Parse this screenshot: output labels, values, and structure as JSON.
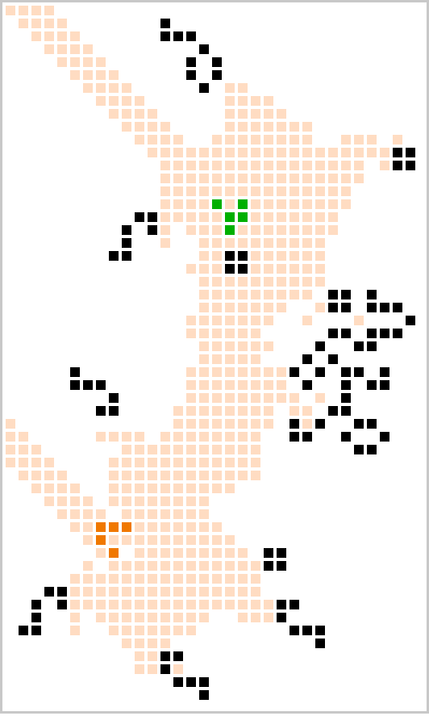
{
  "game": {
    "type": "cellular-automaton-grid",
    "grid": {
      "columns": 33,
      "rows": 55
    },
    "colors": {
      "background": "#ffffff",
      "frame": "#c8c8c8",
      "trail": "#ffdcc2",
      "live": "#000000",
      "glider_green": "#00b000",
      "glider_orange": "#f07800"
    },
    "trail_rows": [
      [
        [
          0,
          3
        ]
      ],
      [
        [
          1,
          4
        ]
      ],
      [
        [
          2,
          5
        ]
      ],
      [
        [
          3,
          6
        ]
      ],
      [
        [
          4,
          7
        ]
      ],
      [
        [
          5,
          8
        ]
      ],
      [
        [
          6,
          9
        ],
        [
          17,
          18
        ]
      ],
      [
        [
          7,
          10
        ],
        [
          17,
          20
        ]
      ],
      [
        [
          8,
          11
        ],
        [
          17,
          21
        ]
      ],
      [
        [
          9,
          12
        ],
        [
          17,
          23
        ]
      ],
      [
        [
          10,
          13
        ],
        [
          16,
          23
        ],
        [
          26,
          28
        ],
        [
          30,
          30
        ]
      ],
      [
        [
          11,
          28
        ],
        [
          29,
          29
        ]
      ],
      [
        [
          12,
          27
        ],
        [
          29,
          30
        ]
      ],
      [
        [
          12,
          27
        ]
      ],
      [
        [
          12,
          26
        ]
      ],
      [
        [
          12,
          26
        ]
      ],
      [
        [
          12,
          25
        ]
      ],
      [
        [
          12,
          12
        ],
        [
          14,
          16
        ],
        [
          18,
          25
        ]
      ],
      [
        [
          12,
          12
        ],
        [
          15,
          24
        ]
      ],
      [
        [
          15,
          24
        ]
      ],
      [
        [
          14,
          24
        ]
      ],
      [
        [
          15,
          24
        ]
      ],
      [
        [
          15,
          23
        ]
      ],
      [
        [
          15,
          21
        ],
        [
          24,
          24
        ]
      ],
      [
        [
          14,
          19
        ],
        [
          20,
          20
        ],
        [
          23,
          23
        ],
        [
          27,
          27
        ]
      ],
      [
        [
          14,
          19
        ],
        [
          26,
          26
        ]
      ],
      [
        [
          15,
          19
        ],
        [
          20,
          20
        ]
      ],
      [
        [
          15,
          19
        ]
      ],
      [
        [
          14,
          21
        ]
      ],
      [
        [
          14,
          20
        ],
        [
          21,
          21
        ]
      ],
      [
        [
          14,
          20
        ],
        [
          21,
          21
        ],
        [
          22,
          22
        ],
        [
          24,
          24
        ]
      ],
      [
        [
          13,
          20
        ],
        [
          22,
          23
        ]
      ],
      [
        [
          0,
          0
        ],
        [
          13,
          20
        ],
        [
          23,
          23
        ]
      ],
      [
        [
          0,
          1
        ],
        [
          7,
          10
        ],
        [
          12,
          19
        ]
      ],
      [
        [
          0,
          2
        ],
        [
          9,
          19
        ]
      ],
      [
        [
          0,
          3
        ],
        [
          8,
          19
        ]
      ],
      [
        [
          1,
          4
        ],
        [
          8,
          19
        ]
      ],
      [
        [
          2,
          5
        ],
        [
          8,
          17
        ]
      ],
      [
        [
          3,
          6
        ],
        [
          8,
          15
        ]
      ],
      [
        [
          4,
          7
        ],
        [
          9,
          15
        ]
      ],
      [
        [
          5,
          8
        ],
        [
          9,
          16
        ]
      ],
      [
        [
          6,
          9
        ],
        [
          10,
          17
        ]
      ],
      [
        [
          7,
          8
        ],
        [
          10,
          18
        ]
      ],
      [
        [
          6,
          6
        ],
        [
          8,
          18
        ],
        [
          19,
          19
        ]
      ],
      [
        [
          5,
          7
        ],
        [
          8,
          19
        ]
      ],
      [
        [
          5,
          19
        ]
      ],
      [
        [
          5,
          20
        ]
      ],
      [
        [
          5,
          5
        ],
        [
          7,
          15
        ],
        [
          18,
          21
        ]
      ],
      [
        [
          5,
          5
        ],
        [
          8,
          14
        ]
      ],
      [
        [
          9,
          12
        ]
      ],
      [
        [
          10,
          11
        ]
      ],
      [
        [
          10,
          13
        ]
      ]
    ],
    "live_cells": [
      [
        12,
        1
      ],
      [
        12,
        2
      ],
      [
        13,
        2
      ],
      [
        14,
        2
      ],
      [
        15,
        3
      ],
      [
        14,
        4
      ],
      [
        16,
        4
      ],
      [
        14,
        5
      ],
      [
        16,
        5
      ],
      [
        15,
        6
      ],
      [
        30,
        11
      ],
      [
        31,
        11
      ],
      [
        30,
        12
      ],
      [
        31,
        12
      ],
      [
        10,
        16
      ],
      [
        11,
        16
      ],
      [
        9,
        17
      ],
      [
        11,
        17
      ],
      [
        9,
        18
      ],
      [
        8,
        19
      ],
      [
        9,
        19
      ],
      [
        17,
        19
      ],
      [
        18,
        19
      ],
      [
        17,
        20
      ],
      [
        18,
        20
      ],
      [
        25,
        22
      ],
      [
        26,
        22
      ],
      [
        28,
        22
      ],
      [
        25,
        23
      ],
      [
        26,
        23
      ],
      [
        28,
        23
      ],
      [
        29,
        23
      ],
      [
        30,
        23
      ],
      [
        31,
        24
      ],
      [
        25,
        25
      ],
      [
        26,
        25
      ],
      [
        28,
        25
      ],
      [
        29,
        25
      ],
      [
        30,
        25
      ],
      [
        24,
        26
      ],
      [
        27,
        26
      ],
      [
        28,
        26
      ],
      [
        23,
        27
      ],
      [
        25,
        27
      ],
      [
        5,
        28
      ],
      [
        22,
        28
      ],
      [
        24,
        28
      ],
      [
        26,
        28
      ],
      [
        27,
        28
      ],
      [
        29,
        28
      ],
      [
        5,
        29
      ],
      [
        6,
        29
      ],
      [
        7,
        29
      ],
      [
        23,
        29
      ],
      [
        26,
        29
      ],
      [
        28,
        29
      ],
      [
        29,
        29
      ],
      [
        8,
        30
      ],
      [
        26,
        30
      ],
      [
        7,
        31
      ],
      [
        8,
        31
      ],
      [
        25,
        31
      ],
      [
        26,
        31
      ],
      [
        22,
        32
      ],
      [
        24,
        32
      ],
      [
        27,
        32
      ],
      [
        28,
        32
      ],
      [
        22,
        33
      ],
      [
        23,
        33
      ],
      [
        26,
        33
      ],
      [
        29,
        33
      ],
      [
        27,
        34
      ],
      [
        28,
        34
      ],
      [
        20,
        42
      ],
      [
        21,
        42
      ],
      [
        20,
        43
      ],
      [
        21,
        43
      ],
      [
        3,
        45
      ],
      [
        4,
        45
      ],
      [
        2,
        46
      ],
      [
        4,
        46
      ],
      [
        21,
        46
      ],
      [
        22,
        46
      ],
      [
        2,
        47
      ],
      [
        21,
        47
      ],
      [
        1,
        48
      ],
      [
        2,
        48
      ],
      [
        22,
        48
      ],
      [
        23,
        48
      ],
      [
        24,
        48
      ],
      [
        24,
        49
      ],
      [
        12,
        50
      ],
      [
        13,
        50
      ],
      [
        12,
        51
      ],
      [
        13,
        52
      ],
      [
        14,
        52
      ],
      [
        15,
        52
      ],
      [
        15,
        53
      ]
    ],
    "green_cells": [
      [
        16,
        15
      ],
      [
        18,
        15
      ],
      [
        17,
        16
      ],
      [
        18,
        16
      ],
      [
        17,
        17
      ]
    ],
    "orange_cells": [
      [
        7,
        40
      ],
      [
        8,
        40
      ],
      [
        9,
        40
      ],
      [
        7,
        41
      ],
      [
        8,
        42
      ]
    ]
  }
}
